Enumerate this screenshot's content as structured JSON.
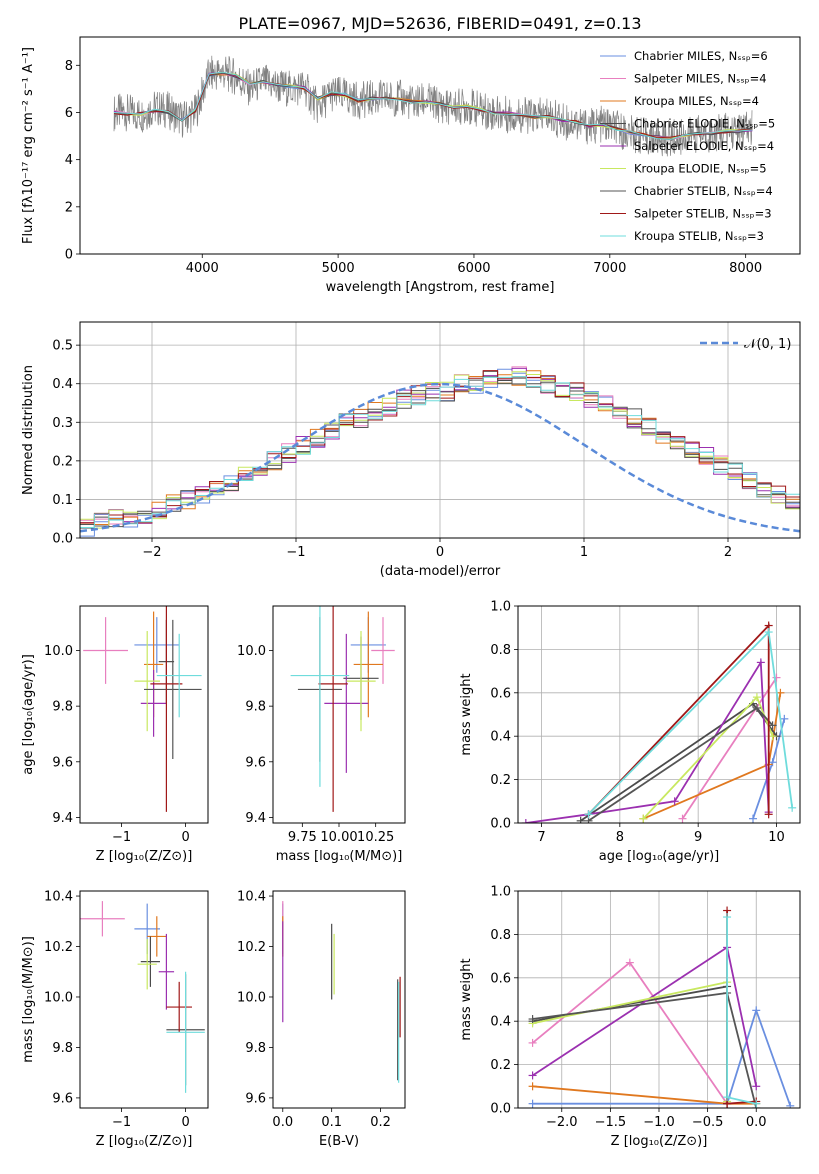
{
  "figure": {
    "title": "PLATE=0967, MJD=52636, FIBERID=0491, z=0.13"
  },
  "model_names": [
    "Chabrier MILES",
    "Salpeter MILES",
    "Kroupa MILES",
    "Chabrier ELODIE",
    "Salpeter ELODIE",
    "Kroupa ELODIE",
    "Chabrier STELIB",
    "Salpeter STELIB",
    "Kroupa STELIB"
  ],
  "model_colors": [
    "#6a8fe0",
    "#e87fbf",
    "#e0781f",
    "#4b4b4b",
    "#9b30b0",
    "#c8e860",
    "#555555",
    "#a01818",
    "#6fdcdc"
  ],
  "chart_data": [
    {
      "type": "line",
      "panel": "spectrum",
      "xlabel": "wavelength [Angstrom, rest frame]",
      "ylabel": "Flux [fλ10⁻¹⁷ erg cm⁻² s⁻¹ A⁻¹]",
      "xlim": [
        3100,
        8400
      ],
      "ylim": [
        0,
        9.2
      ],
      "xticks": [
        "4000",
        "5000",
        "6000",
        "7000",
        "8000"
      ],
      "yticks": [
        "0",
        "2",
        "4",
        "6",
        "8"
      ],
      "legend_position": "top-right",
      "legend": [
        "Chabrier MILES, Nₛₛₚ=6",
        "Salpeter MILES, Nₛₛₚ=4",
        "Kroupa MILES, Nₛₛₚ=4",
        "Chabrier ELODIE, Nₛₛₚ=5",
        "Salpeter ELODIE, Nₛₛₚ=4",
        "Kroupa ELODIE, Nₛₛₚ=5",
        "Chabrier STELIB, Nₛₛₚ=4",
        "Salpeter STELIB, Nₛₛₚ=3",
        "Kroupa STELIB, Nₛₛₚ=3"
      ],
      "data_color": "#808080",
      "data_spectrum": [
        [
          3350,
          6.0
        ],
        [
          3450,
          6.0
        ],
        [
          3550,
          5.9
        ],
        [
          3650,
          6.2
        ],
        [
          3750,
          6.1
        ],
        [
          3850,
          5.7
        ],
        [
          3950,
          6.0
        ],
        [
          4050,
          7.6
        ],
        [
          4150,
          7.7
        ],
        [
          4250,
          7.5
        ],
        [
          4350,
          7.0
        ],
        [
          4450,
          7.3
        ],
        [
          4550,
          7.1
        ],
        [
          4650,
          7.0
        ],
        [
          4750,
          7.1
        ],
        [
          4850,
          6.2
        ],
        [
          4950,
          6.8
        ],
        [
          5050,
          6.7
        ],
        [
          5150,
          6.5
        ],
        [
          5250,
          6.6
        ],
        [
          5350,
          6.6
        ],
        [
          5450,
          6.6
        ],
        [
          5550,
          6.4
        ],
        [
          5650,
          6.5
        ],
        [
          5750,
          6.3
        ],
        [
          5850,
          6.2
        ],
        [
          5950,
          6.3
        ],
        [
          6050,
          6.1
        ],
        [
          6150,
          6.0
        ],
        [
          6250,
          5.9
        ],
        [
          6350,
          5.9
        ],
        [
          6450,
          5.8
        ],
        [
          6550,
          5.9
        ],
        [
          6650,
          5.6
        ],
        [
          6750,
          5.6
        ],
        [
          6850,
          5.4
        ],
        [
          6950,
          5.5
        ],
        [
          7050,
          5.3
        ],
        [
          7150,
          5.1
        ],
        [
          7250,
          5.0
        ],
        [
          7350,
          4.9
        ],
        [
          7450,
          4.9
        ],
        [
          7550,
          5.0
        ],
        [
          7650,
          5.1
        ],
        [
          7750,
          5.1
        ],
        [
          7850,
          5.2
        ],
        [
          7950,
          5.2
        ],
        [
          8050,
          5.3
        ]
      ],
      "model_spectrum": [
        [
          3350,
          6.0
        ],
        [
          3450,
          5.95
        ],
        [
          3550,
          5.95
        ],
        [
          3650,
          6.1
        ],
        [
          3750,
          6.0
        ],
        [
          3850,
          5.7
        ],
        [
          3950,
          6.1
        ],
        [
          4050,
          7.6
        ],
        [
          4150,
          7.65
        ],
        [
          4250,
          7.55
        ],
        [
          4350,
          7.2
        ],
        [
          4450,
          7.3
        ],
        [
          4550,
          7.2
        ],
        [
          4650,
          7.1
        ],
        [
          4750,
          7.05
        ],
        [
          4850,
          6.6
        ],
        [
          4950,
          6.8
        ],
        [
          5050,
          6.75
        ],
        [
          5150,
          6.5
        ],
        [
          5250,
          6.6
        ],
        [
          5350,
          6.6
        ],
        [
          5450,
          6.55
        ],
        [
          5550,
          6.45
        ],
        [
          5650,
          6.45
        ],
        [
          5750,
          6.35
        ],
        [
          5850,
          6.25
        ],
        [
          5950,
          6.25
        ],
        [
          6050,
          6.1
        ],
        [
          6150,
          6.0
        ],
        [
          6250,
          5.95
        ],
        [
          6350,
          5.9
        ],
        [
          6450,
          5.8
        ],
        [
          6550,
          5.8
        ],
        [
          6650,
          5.65
        ],
        [
          6750,
          5.6
        ],
        [
          6850,
          5.45
        ],
        [
          6950,
          5.45
        ],
        [
          7050,
          5.3
        ],
        [
          7150,
          5.15
        ],
        [
          7250,
          5.05
        ],
        [
          7350,
          4.95
        ],
        [
          7450,
          4.9
        ],
        [
          7550,
          5.0
        ],
        [
          7650,
          5.1
        ],
        [
          7750,
          5.1
        ],
        [
          7850,
          5.2
        ],
        [
          7950,
          5.2
        ],
        [
          8050,
          5.3
        ]
      ]
    },
    {
      "type": "step",
      "panel": "residuals",
      "xlabel": "(data-model)/error",
      "ylabel": "Normed distribution",
      "xlim": [
        -2.5,
        2.5
      ],
      "ylim": [
        0,
        0.56
      ],
      "xticks": [
        "−2",
        "−1",
        "0",
        "1",
        "2"
      ],
      "yticks": [
        "0.0",
        "0.1",
        "0.2",
        "0.3",
        "0.4",
        "0.5"
      ],
      "grid": true,
      "legend_position": "top-right",
      "legend": [
        "𝒩(0, 1)"
      ],
      "gaussian": {
        "mean": 0,
        "sigma": 1,
        "color": "#5a8ad8"
      },
      "bin_width": 0.1,
      "bin_start": -2.5,
      "histogram": [
        0.03,
        0.04,
        0.05,
        0.05,
        0.06,
        0.07,
        0.09,
        0.1,
        0.11,
        0.13,
        0.14,
        0.16,
        0.18,
        0.2,
        0.22,
        0.24,
        0.26,
        0.28,
        0.3,
        0.31,
        0.33,
        0.34,
        0.36,
        0.37,
        0.38,
        0.38,
        0.4,
        0.4,
        0.41,
        0.42,
        0.42,
        0.41,
        0.4,
        0.39,
        0.38,
        0.36,
        0.35,
        0.33,
        0.31,
        0.29,
        0.27,
        0.25,
        0.23,
        0.21,
        0.19,
        0.17,
        0.15,
        0.13,
        0.11,
        0.1
      ]
    },
    {
      "type": "errorbar",
      "panel": "age-vs-Z",
      "xlabel": "Z [log₁₀(Z/Z⊙)]",
      "ylabel": "age  [log₁₀(age/yr)]",
      "xlim": [
        -1.65,
        0.35
      ],
      "ylim": [
        9.38,
        10.16
      ],
      "xticks": [
        "−1",
        "0"
      ],
      "yticks": [
        "9.4",
        "9.6",
        "9.8",
        "10.0"
      ],
      "points": [
        {
          "x": -0.45,
          "xerr": 0.35,
          "y": 10.02,
          "yerr": 0.1
        },
        {
          "x": -1.25,
          "xerr": 0.35,
          "y": 10.0,
          "yerr": 0.12
        },
        {
          "x": -0.5,
          "xerr": 0.15,
          "y": 9.95,
          "yerr": 0.19
        },
        {
          "x": -0.3,
          "xerr": 0.12,
          "y": 9.96,
          "yerr": 0.15
        },
        {
          "x": -0.5,
          "xerr": 0.2,
          "y": 9.81,
          "yerr": 0.12
        },
        {
          "x": -0.6,
          "xerr": 0.2,
          "y": 9.89,
          "yerr": 0.18
        },
        {
          "x": -0.2,
          "xerr": 0.45,
          "y": 9.86,
          "yerr": 0.25
        },
        {
          "x": -0.3,
          "xerr": 0.25,
          "y": 9.88,
          "yerr": 0.46
        },
        {
          "x": -0.1,
          "xerr": 0.35,
          "y": 9.91,
          "yerr": 0.15
        }
      ]
    },
    {
      "type": "errorbar",
      "panel": "age-vs-mass",
      "xlabel": "mass [log₁₀(M/M⊙)]",
      "ylabel": "",
      "xlim": [
        9.55,
        10.45
      ],
      "ylim": [
        9.38,
        10.16
      ],
      "xticks": [
        "9.75",
        "10.00",
        "10.25"
      ],
      "yticks": [
        "9.4",
        "9.6",
        "9.8",
        "10.0"
      ],
      "points": [
        {
          "x": 10.2,
          "xerr": 0.12,
          "y": 10.02,
          "yerr": 0.1
        },
        {
          "x": 10.3,
          "xerr": 0.08,
          "y": 10.0,
          "yerr": 0.12
        },
        {
          "x": 10.2,
          "xerr": 0.1,
          "y": 9.95,
          "yerr": 0.19
        },
        {
          "x": 10.15,
          "xerr": 0.12,
          "y": 9.9,
          "yerr": 0.15
        },
        {
          "x": 10.05,
          "xerr": 0.15,
          "y": 9.81,
          "yerr": 0.25
        },
        {
          "x": 10.15,
          "xerr": 0.1,
          "y": 9.89,
          "yerr": 0.18
        },
        {
          "x": 9.87,
          "xerr": 0.15,
          "y": 9.86,
          "yerr": 0.26
        },
        {
          "x": 9.96,
          "xerr": 0.1,
          "y": 9.88,
          "yerr": 0.46
        },
        {
          "x": 9.87,
          "xerr": 0.2,
          "y": 9.91,
          "yerr": 0.4
        }
      ]
    },
    {
      "type": "line",
      "panel": "weight-vs-age",
      "xlabel": "age  [log₁₀(age/yr)]",
      "ylabel": "mass weight",
      "xlim": [
        6.7,
        10.3
      ],
      "ylim": [
        0,
        1.0
      ],
      "xticks": [
        "7",
        "8",
        "9",
        "10"
      ],
      "yticks": [
        "0.0",
        "0.2",
        "0.4",
        "0.6",
        "0.8",
        "1.0"
      ],
      "grid": true,
      "series": [
        {
          "x": [
            9.7,
            9.95,
            10.1
          ],
          "y": [
            0.02,
            0.28,
            0.48
          ]
        },
        {
          "x": [
            8.8,
            10.0
          ],
          "y": [
            0.02,
            0.67
          ]
        },
        {
          "x": [
            8.3,
            9.9,
            10.05
          ],
          "y": [
            0.02,
            0.27,
            0.6
          ]
        },
        {
          "x": [
            7.5,
            9.7,
            10.0
          ],
          "y": [
            0.01,
            0.55,
            0.4
          ]
        },
        {
          "x": [
            6.8,
            7.6,
            8.7,
            9.8,
            9.9
          ],
          "y": [
            0.0,
            0.04,
            0.1,
            0.74,
            0.05
          ]
        },
        {
          "x": [
            8.3,
            9.75,
            9.95
          ],
          "y": [
            0.02,
            0.58,
            0.4
          ]
        },
        {
          "x": [
            7.6,
            9.75,
            9.95
          ],
          "y": [
            0.01,
            0.53,
            0.45
          ]
        },
        {
          "x": [
            7.6,
            9.9,
            9.9
          ],
          "y": [
            0.04,
            0.91,
            0.04
          ]
        },
        {
          "x": [
            7.6,
            9.9,
            10.2
          ],
          "y": [
            0.04,
            0.88,
            0.07
          ]
        }
      ]
    },
    {
      "type": "errorbar",
      "panel": "mass-vs-Z",
      "xlabel": "Z [log₁₀(Z/Z⊙)]",
      "ylabel": "mass [log₁₀(M/M⊙)]",
      "xlim": [
        -1.65,
        0.35
      ],
      "ylim": [
        9.56,
        10.42
      ],
      "xticks": [
        "−1",
        "0"
      ],
      "yticks": [
        "9.6",
        "9.8",
        "10.0",
        "10.2",
        "10.4"
      ],
      "points": [
        {
          "x": -0.6,
          "xerr": 0.2,
          "y": 10.27,
          "yerr": 0.1
        },
        {
          "x": -1.3,
          "xerr": 0.35,
          "y": 10.31,
          "yerr": 0.07
        },
        {
          "x": -0.45,
          "xerr": 0.15,
          "y": 10.24,
          "yerr": 0.08
        },
        {
          "x": -0.55,
          "xerr": 0.15,
          "y": 10.14,
          "yerr": 0.1
        },
        {
          "x": -0.3,
          "xerr": 0.12,
          "y": 10.1,
          "yerr": 0.15
        },
        {
          "x": -0.6,
          "xerr": 0.15,
          "y": 10.13,
          "yerr": 0.1
        },
        {
          "x": 0.0,
          "xerr": 0.3,
          "y": 9.87,
          "yerr": 0.22
        },
        {
          "x": -0.1,
          "xerr": 0.2,
          "y": 9.96,
          "yerr": 0.1
        },
        {
          "x": 0.0,
          "xerr": 0.3,
          "y": 9.86,
          "yerr": 0.24
        }
      ]
    },
    {
      "type": "errorbar",
      "panel": "mass-vs-EBV",
      "xlabel": "E(B-V)",
      "ylabel": "",
      "xlim": [
        -0.02,
        0.25
      ],
      "ylim": [
        9.56,
        10.42
      ],
      "xticks": [
        "0.0",
        "0.1",
        "0.2"
      ],
      "yticks": [
        "9.6",
        "9.8",
        "10.0",
        "10.2",
        "10.4"
      ],
      "points": [
        {
          "x": 0.0,
          "xerr": 0,
          "y": 10.27,
          "yerr": 0.1
        },
        {
          "x": 0.0,
          "xerr": 0,
          "y": 10.31,
          "yerr": 0.07
        },
        {
          "x": 0.0,
          "xerr": 0,
          "y": 10.24,
          "yerr": 0.08
        },
        {
          "x": 0.1,
          "xerr": 0,
          "y": 10.14,
          "yerr": 0.15
        },
        {
          "x": 0.0,
          "xerr": 0,
          "y": 10.1,
          "yerr": 0.2
        },
        {
          "x": 0.105,
          "xerr": 0,
          "y": 10.13,
          "yerr": 0.12
        },
        {
          "x": 0.235,
          "xerr": 0,
          "y": 9.87,
          "yerr": 0.2
        },
        {
          "x": 0.24,
          "xerr": 0,
          "y": 9.96,
          "yerr": 0.12
        },
        {
          "x": 0.237,
          "xerr": 0,
          "y": 9.86,
          "yerr": 0.2
        }
      ]
    },
    {
      "type": "line",
      "panel": "weight-vs-Z",
      "xlabel": "Z [log₁₀(Z/Z⊙)]",
      "ylabel": "mass weight",
      "xlim": [
        -2.45,
        0.45
      ],
      "ylim": [
        0,
        1.0
      ],
      "xticks": [
        "−2.0",
        "−1.5",
        "−1.0",
        "−0.5",
        "0.0"
      ],
      "yticks": [
        "0.0",
        "0.2",
        "0.4",
        "0.6",
        "0.8",
        "1.0"
      ],
      "grid": true,
      "series": [
        {
          "x": [
            -2.3,
            -0.3,
            0.0,
            0.35
          ],
          "y": [
            0.02,
            0.02,
            0.45,
            0.01
          ]
        },
        {
          "x": [
            -2.3,
            -1.3,
            -0.3
          ],
          "y": [
            0.3,
            0.67,
            0.02
          ]
        },
        {
          "x": [
            -2.3,
            -0.3,
            0.0
          ],
          "y": [
            0.1,
            0.02,
            0.02
          ]
        },
        {
          "x": [
            -2.3,
            -0.3,
            -0.3
          ],
          "y": [
            0.4,
            0.56,
            0.02
          ]
        },
        {
          "x": [
            -2.3,
            -0.3,
            0.0
          ],
          "y": [
            0.15,
            0.74,
            0.1
          ]
        },
        {
          "x": [
            -2.3,
            -0.3,
            -0.3
          ],
          "y": [
            0.39,
            0.58,
            0.03
          ]
        },
        {
          "x": [
            -2.3,
            -0.3,
            0.0
          ],
          "y": [
            0.41,
            0.53,
            0.0
          ]
        },
        {
          "x": [
            -0.3,
            -0.3,
            0.0
          ],
          "y": [
            0.91,
            0.02,
            0.03
          ]
        },
        {
          "x": [
            -0.3,
            -0.3,
            0.0
          ],
          "y": [
            0.88,
            0.05,
            0.02
          ]
        }
      ]
    }
  ]
}
